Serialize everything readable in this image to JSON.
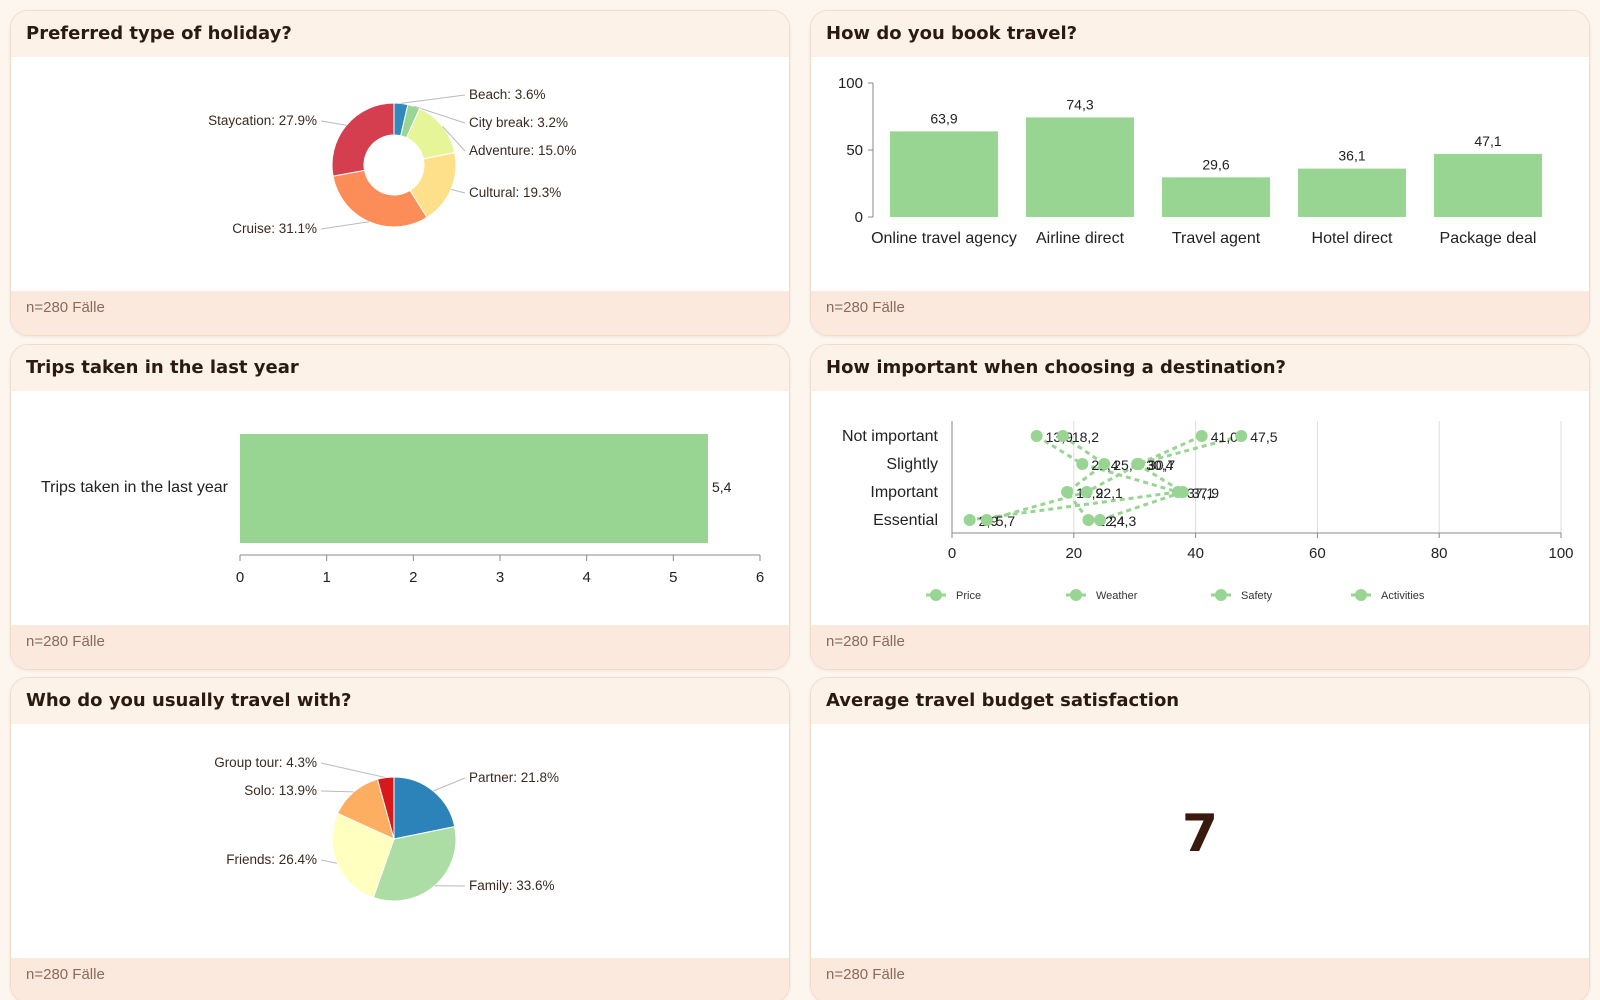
{
  "colors": {
    "bar": "#98d492",
    "axis": "#888888",
    "grid": "#dddddd",
    "footer_text": "#8a6a5a"
  },
  "cards": [
    {
      "title": "Preferred type of holiday?",
      "footer": "n=280 Fälle",
      "chart_data": {
        "type": "donut",
        "slices": [
          {
            "label": "Beach: 3.6%",
            "value": 3.6,
            "color": "#3288bd"
          },
          {
            "label": "City break: 3.2%",
            "value": 3.2,
            "color": "#99d594"
          },
          {
            "label": "Adventure: 15.0%",
            "value": 15.0,
            "color": "#e6f598"
          },
          {
            "label": "Cultural: 19.3%",
            "value": 19.3,
            "color": "#fee08b"
          },
          {
            "label": "Cruise: 31.1%",
            "value": 31.1,
            "color": "#fc8d59"
          },
          {
            "label": "Staycation: 27.9%",
            "value": 27.9,
            "color": "#d53e4f"
          }
        ]
      }
    },
    {
      "title": "How do you book travel?",
      "footer": "n=280 Fälle",
      "chart_data": {
        "type": "bar",
        "categories": [
          "Online travel agency",
          "Airline direct",
          "Travel agent",
          "Hotel direct",
          "Package deal"
        ],
        "values": [
          63.9,
          74.3,
          29.6,
          36.1,
          47.1
        ],
        "value_labels": [
          "63,9",
          "74,3",
          "29,6",
          "36,1",
          "47,1"
        ],
        "ylim": [
          0,
          100
        ],
        "yticks": [
          "0",
          "50",
          "100"
        ]
      }
    },
    {
      "title": "Trips taken in the last year",
      "footer": "n=280 Fälle",
      "chart_data": {
        "type": "bar",
        "orientation": "horizontal",
        "categories": [
          "Trips taken in the last year"
        ],
        "values": [
          5.4
        ],
        "value_labels": [
          "5,4"
        ],
        "xlim": [
          0,
          6
        ],
        "xticks": [
          "0",
          "1",
          "2",
          "3",
          "4",
          "5",
          "6"
        ]
      }
    },
    {
      "title": "How important when choosing a destination?",
      "footer": "n=280 Fälle",
      "chart_data": {
        "type": "line",
        "categories": [
          "Not important",
          "Slightly",
          "Important",
          "Essential"
        ],
        "xlim": [
          0,
          100
        ],
        "xticks": [
          "0",
          "20",
          "40",
          "60",
          "80",
          "100"
        ],
        "grid": true,
        "legend": "bottom",
        "series": [
          {
            "name": "Price",
            "values": [
              13.9,
              21.4,
              37.1,
              2.9
            ],
            "labels": [
              "13,9",
              "21,4",
              "37,1",
              "2,9"
            ]
          },
          {
            "name": "Weather",
            "values": [
              18.2,
              25.0,
              18.9,
              22.4
            ],
            "labels": [
              "18,2",
              "25,0",
              "18,9",
              "22,4"
            ]
          },
          {
            "name": "Safety",
            "values": [
              41.0,
              30.7,
              22.1,
              5.7
            ],
            "labels": [
              "41,0",
              "30,7",
              "22,1",
              "5,7"
            ]
          },
          {
            "name": "Activities",
            "values": [
              47.5,
              30.4,
              37.9,
              24.3
            ],
            "labels": [
              "47,5",
              "30,4",
              "37,9",
              "24,3"
            ]
          }
        ]
      }
    },
    {
      "title": "Who do you usually travel with?",
      "footer": "n=280 Fälle",
      "chart_data": {
        "type": "pie",
        "slices": [
          {
            "label": "Partner: 21.8%",
            "value": 21.8,
            "color": "#2b83ba"
          },
          {
            "label": "Family: 33.6%",
            "value": 33.6,
            "color": "#abdda4"
          },
          {
            "label": "Friends: 26.4%",
            "value": 26.4,
            "color": "#ffffbf"
          },
          {
            "label": "Solo: 13.9%",
            "value": 13.9,
            "color": "#fdae61"
          },
          {
            "label": "Group tour: 4.3%",
            "value": 4.3,
            "color": "#d7191c"
          }
        ]
      }
    },
    {
      "title": "Average travel budget satisfaction",
      "footer": "n=280 Fälle",
      "value": "7"
    }
  ]
}
